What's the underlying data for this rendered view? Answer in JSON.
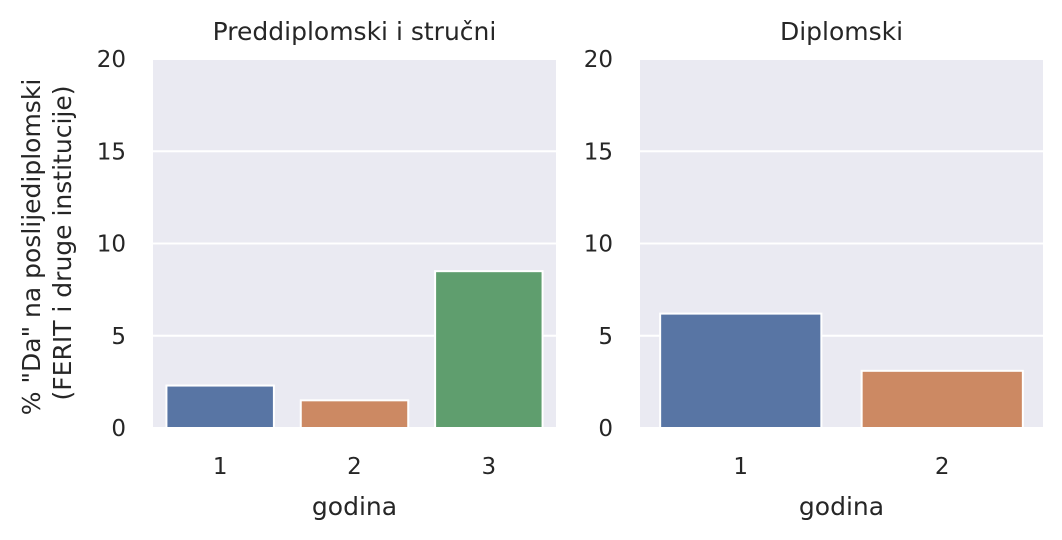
{
  "figure": {
    "ylabel_line1": "% \"Da\" na poslijediplomski",
    "ylabel_line2": "(FERIT i druge institucije)"
  },
  "chart_data": [
    {
      "type": "bar",
      "title": "Preddiplomski i stručni",
      "xlabel": "godina",
      "ylabel": "% \"Da\" na poslijediplomski (FERIT i druge institucije)",
      "categories": [
        "1",
        "2",
        "3"
      ],
      "values": [
        2.3,
        1.5,
        8.5
      ],
      "colors": [
        "#5875a4",
        "#cc8963",
        "#5f9e6e"
      ],
      "ylim": [
        0,
        20
      ],
      "yticks": [
        "0",
        "5",
        "10",
        "15",
        "20"
      ],
      "grid": true
    },
    {
      "type": "bar",
      "title": "Diplomski",
      "xlabel": "godina",
      "ylabel": "",
      "categories": [
        "1",
        "2"
      ],
      "values": [
        6.2,
        3.1
      ],
      "colors": [
        "#5875a4",
        "#cc8963"
      ],
      "ylim": [
        0,
        20
      ],
      "yticks": [
        "0",
        "5",
        "10",
        "15",
        "20"
      ],
      "grid": true
    }
  ]
}
